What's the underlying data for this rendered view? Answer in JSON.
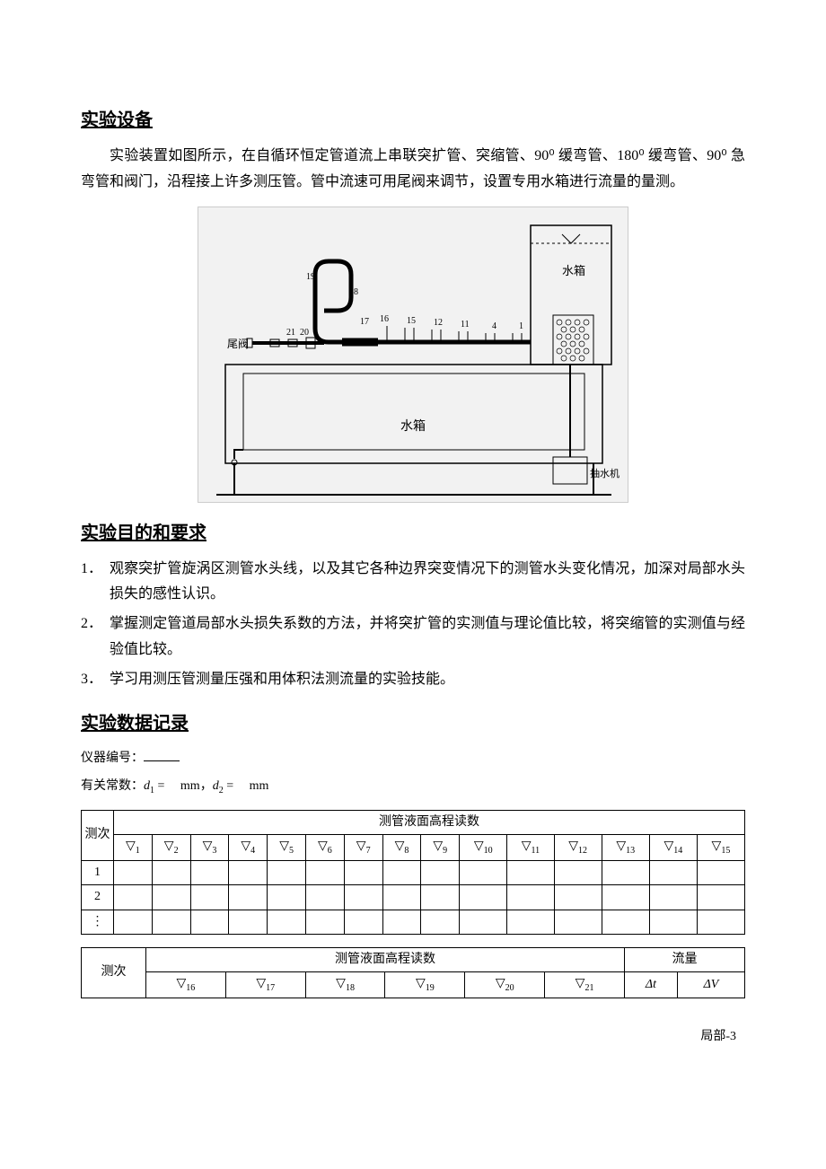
{
  "headings": {
    "h1": "实验设备",
    "h2": "实验目的和要求",
    "h3": "实验数据记录"
  },
  "intro_para": "实验装置如图所示，在自循环恒定管道流上串联突扩管、突缩管、90⁰ 缓弯管、180⁰ 缓弯管、90⁰ 急弯管和阀门，沿程接上许多测压管。管中流速可用尾阀来调节，设置专用水箱进行流量的量测。",
  "diagram": {
    "background": "#f2f2f2",
    "stroke": "#000000",
    "labels": {
      "tank_top": "水箱",
      "tank_bottom": "水箱",
      "pump": "抽水机",
      "tail_valve": "尾阀",
      "nums": [
        "19",
        "18",
        "20",
        "21",
        "17",
        "16",
        "15",
        "12",
        "11",
        "4",
        "1"
      ]
    }
  },
  "objectives": [
    "观察突扩管旋涡区测管水头线，以及其它各种边界突变情况下的测管水头变化情况，加深对局部水头损失的感性认识。",
    "掌握测定管道局部水头损失系数的方法，并将突扩管的实测值与理论值比较，将突缩管的实测值与经验值比较。",
    "学习用测压管测量压强和用体积法测流量的实验技能。"
  ],
  "data_record": {
    "instrument_label": "仪器编号：",
    "constants_prefix": "有关常数：",
    "d1": "d",
    "d1_sub": "1",
    "d2": "d",
    "d2_sub": "2",
    "eq": " = ",
    "unit": "mm",
    "sep": "，"
  },
  "table1": {
    "col_measure": "测次",
    "header_span": "测管液面高程读数",
    "subs": [
      "1",
      "2",
      "3",
      "4",
      "5",
      "6",
      "7",
      "8",
      "9",
      "10",
      "11",
      "12",
      "13",
      "14",
      "15"
    ],
    "rows": [
      "1",
      "2",
      "⋮"
    ]
  },
  "table2": {
    "col_measure": "测次",
    "header_span": "测管液面高程读数",
    "flow": "流量",
    "subs": [
      "16",
      "17",
      "18",
      "19",
      "20",
      "21"
    ],
    "dt": "Δt",
    "dV": "ΔV"
  },
  "footer": "局部-3"
}
